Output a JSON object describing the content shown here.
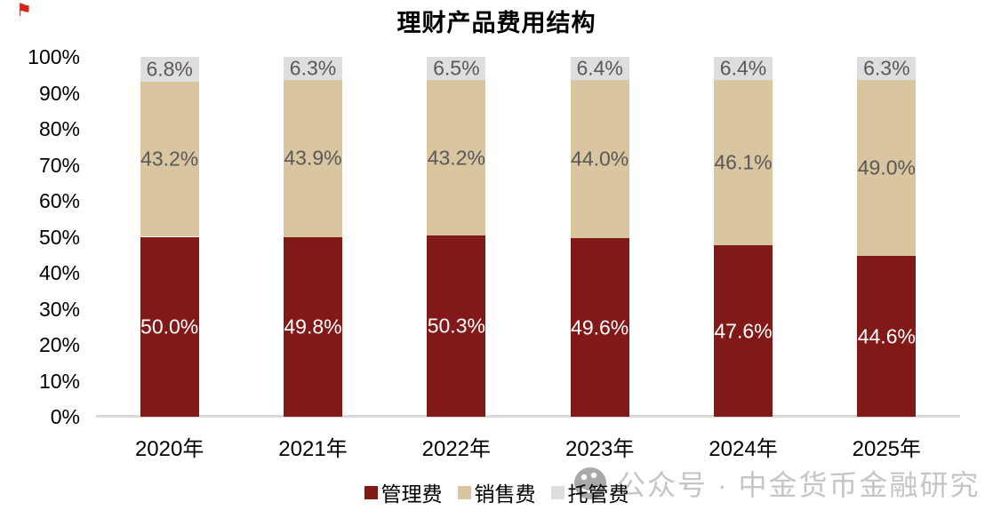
{
  "corner_mark": {
    "glyph": "⚑",
    "color": "#d0261b",
    "name": "red-flag-mark"
  },
  "chart_data": {
    "type": "bar",
    "stacked": true,
    "title": "理财产品费用结构",
    "unit": "%",
    "categories": [
      "2020年",
      "2021年",
      "2022年",
      "2023年",
      "2024年",
      "2025年"
    ],
    "series": [
      {
        "name": "管理费",
        "color": "#821919",
        "label_color": "#ffffff",
        "values": [
          50.0,
          49.8,
          50.3,
          49.6,
          47.6,
          44.6
        ],
        "labels": [
          "50.0%",
          "49.8%",
          "50.3%",
          "49.6%",
          "47.6%",
          "44.6%"
        ]
      },
      {
        "name": "销售费",
        "color": "#d9c5a0",
        "label_color": "#595959",
        "values": [
          43.2,
          43.9,
          43.2,
          44.0,
          46.1,
          49.0
        ],
        "labels": [
          "43.2%",
          "43.9%",
          "43.2%",
          "44.0%",
          "46.1%",
          "49.0%"
        ]
      },
      {
        "name": "托管费",
        "color": "#dedede",
        "label_color": "#595959",
        "values": [
          6.8,
          6.3,
          6.5,
          6.4,
          6.4,
          6.3
        ],
        "labels": [
          "6.8%",
          "6.3%",
          "6.5%",
          "6.4%",
          "6.4%",
          "6.3%"
        ]
      }
    ],
    "xlabel": "",
    "ylabel": "",
    "ylim": [
      0,
      100
    ],
    "yticks": [
      "0%",
      "10%",
      "20%",
      "30%",
      "40%",
      "50%",
      "60%",
      "70%",
      "80%",
      "90%",
      "100%"
    ],
    "grid": false,
    "legend_position": "bottom",
    "axis_line_color": "#d9d9d9"
  },
  "watermark": {
    "logo": "wechat-official-account-icon",
    "logo_color": "#a9a9a9",
    "text": "公众号 · 中金货币金融研究",
    "text_color": "#c5c5c5"
  }
}
